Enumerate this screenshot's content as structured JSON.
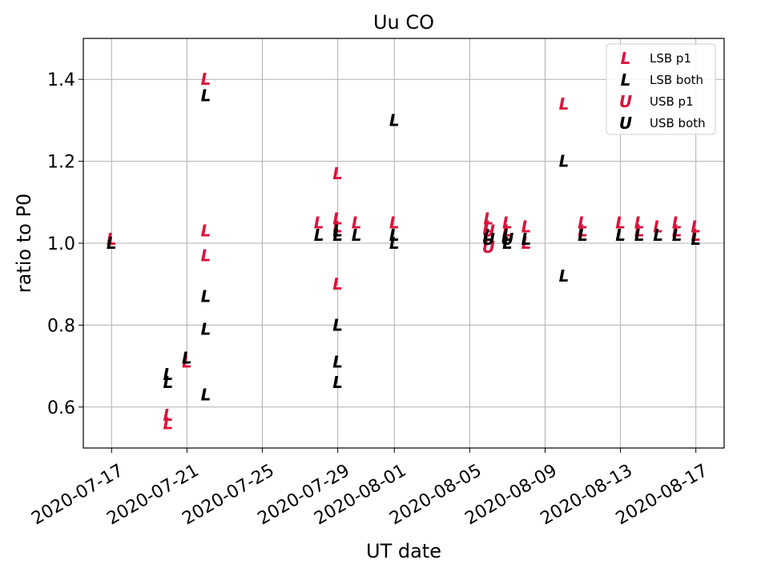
{
  "chart_data": {
    "type": "scatter",
    "title": "Uu CO",
    "xlabel": "UT date",
    "ylabel": "ratio to P0",
    "xlim": [
      "2020-07-15.5",
      "2020-08-18.5"
    ],
    "ylim": [
      0.5,
      1.5
    ],
    "x_ticks": [
      "2020-07-17",
      "2020-07-21",
      "2020-07-25",
      "2020-07-29",
      "2020-08-01",
      "2020-08-05",
      "2020-08-09",
      "2020-08-13",
      "2020-08-17"
    ],
    "y_ticks": [
      "0.6",
      "0.8",
      "1.0",
      "1.2",
      "1.4"
    ],
    "grid": true,
    "legend_position": "top-right",
    "series": [
      {
        "name": "LSB p1",
        "marker": "L",
        "color": "#dc143c",
        "points": [
          {
            "x": "2020-07-17",
            "y": 1.01
          },
          {
            "x": "2020-07-20",
            "y": 0.58
          },
          {
            "x": "2020-07-20",
            "y": 0.56
          },
          {
            "x": "2020-07-21",
            "y": 0.71
          },
          {
            "x": "2020-07-22",
            "y": 1.4
          },
          {
            "x": "2020-07-22",
            "y": 1.03
          },
          {
            "x": "2020-07-22",
            "y": 0.97
          },
          {
            "x": "2020-07-28",
            "y": 1.05
          },
          {
            "x": "2020-07-29",
            "y": 1.17
          },
          {
            "x": "2020-07-29",
            "y": 1.06
          },
          {
            "x": "2020-07-29",
            "y": 1.04
          },
          {
            "x": "2020-07-29",
            "y": 0.9
          },
          {
            "x": "2020-07-30",
            "y": 1.05
          },
          {
            "x": "2020-08-01",
            "y": 1.05
          },
          {
            "x": "2020-08-01",
            "y": 1.02
          },
          {
            "x": "2020-08-06",
            "y": 1.06
          },
          {
            "x": "2020-08-06",
            "y": 1.04
          },
          {
            "x": "2020-08-07",
            "y": 1.05
          },
          {
            "x": "2020-08-07",
            "y": 1.03
          },
          {
            "x": "2020-08-08",
            "y": 1.04
          },
          {
            "x": "2020-08-08",
            "y": 1.0
          },
          {
            "x": "2020-08-10",
            "y": 1.34
          },
          {
            "x": "2020-08-11",
            "y": 1.05
          },
          {
            "x": "2020-08-11",
            "y": 1.03
          },
          {
            "x": "2020-08-13",
            "y": 1.05
          },
          {
            "x": "2020-08-14",
            "y": 1.05
          },
          {
            "x": "2020-08-14",
            "y": 1.03
          },
          {
            "x": "2020-08-15",
            "y": 1.04
          },
          {
            "x": "2020-08-16",
            "y": 1.05
          },
          {
            "x": "2020-08-16",
            "y": 1.03
          },
          {
            "x": "2020-08-17",
            "y": 1.04
          },
          {
            "x": "2020-08-17",
            "y": 1.02
          }
        ]
      },
      {
        "name": "LSB both",
        "marker": "L",
        "color": "#000000",
        "points": [
          {
            "x": "2020-07-17",
            "y": 1.0
          },
          {
            "x": "2020-07-20",
            "y": 0.68
          },
          {
            "x": "2020-07-20",
            "y": 0.66
          },
          {
            "x": "2020-07-21",
            "y": 0.72
          },
          {
            "x": "2020-07-22",
            "y": 1.36
          },
          {
            "x": "2020-07-22",
            "y": 0.87
          },
          {
            "x": "2020-07-22",
            "y": 0.79
          },
          {
            "x": "2020-07-22",
            "y": 0.63
          },
          {
            "x": "2020-07-28",
            "y": 1.02
          },
          {
            "x": "2020-07-29",
            "y": 1.03
          },
          {
            "x": "2020-07-29",
            "y": 1.02
          },
          {
            "x": "2020-07-29",
            "y": 0.8
          },
          {
            "x": "2020-07-29",
            "y": 0.71
          },
          {
            "x": "2020-07-29",
            "y": 0.66
          },
          {
            "x": "2020-07-30",
            "y": 1.02
          },
          {
            "x": "2020-08-01",
            "y": 1.3
          },
          {
            "x": "2020-08-01",
            "y": 1.02
          },
          {
            "x": "2020-08-01",
            "y": 1.0
          },
          {
            "x": "2020-08-06",
            "y": 1.02
          },
          {
            "x": "2020-08-07",
            "y": 1.02
          },
          {
            "x": "2020-08-07",
            "y": 1.0
          },
          {
            "x": "2020-08-08",
            "y": 1.01
          },
          {
            "x": "2020-08-10",
            "y": 1.2
          },
          {
            "x": "2020-08-10",
            "y": 0.92
          },
          {
            "x": "2020-08-11",
            "y": 1.02
          },
          {
            "x": "2020-08-13",
            "y": 1.02
          },
          {
            "x": "2020-08-14",
            "y": 1.02
          },
          {
            "x": "2020-08-15",
            "y": 1.02
          },
          {
            "x": "2020-08-16",
            "y": 1.02
          },
          {
            "x": "2020-08-17",
            "y": 1.01
          }
        ]
      },
      {
        "name": "USB p1",
        "marker": "U",
        "color": "#dc143c",
        "points": [
          {
            "x": "2020-08-06",
            "y": 0.99
          },
          {
            "x": "2020-08-06",
            "y": 1.03
          }
        ]
      },
      {
        "name": "USB both",
        "marker": "U",
        "color": "#000000",
        "points": [
          {
            "x": "2020-08-06",
            "y": 1.01
          },
          {
            "x": "2020-08-07",
            "y": 1.01
          }
        ]
      }
    ]
  }
}
